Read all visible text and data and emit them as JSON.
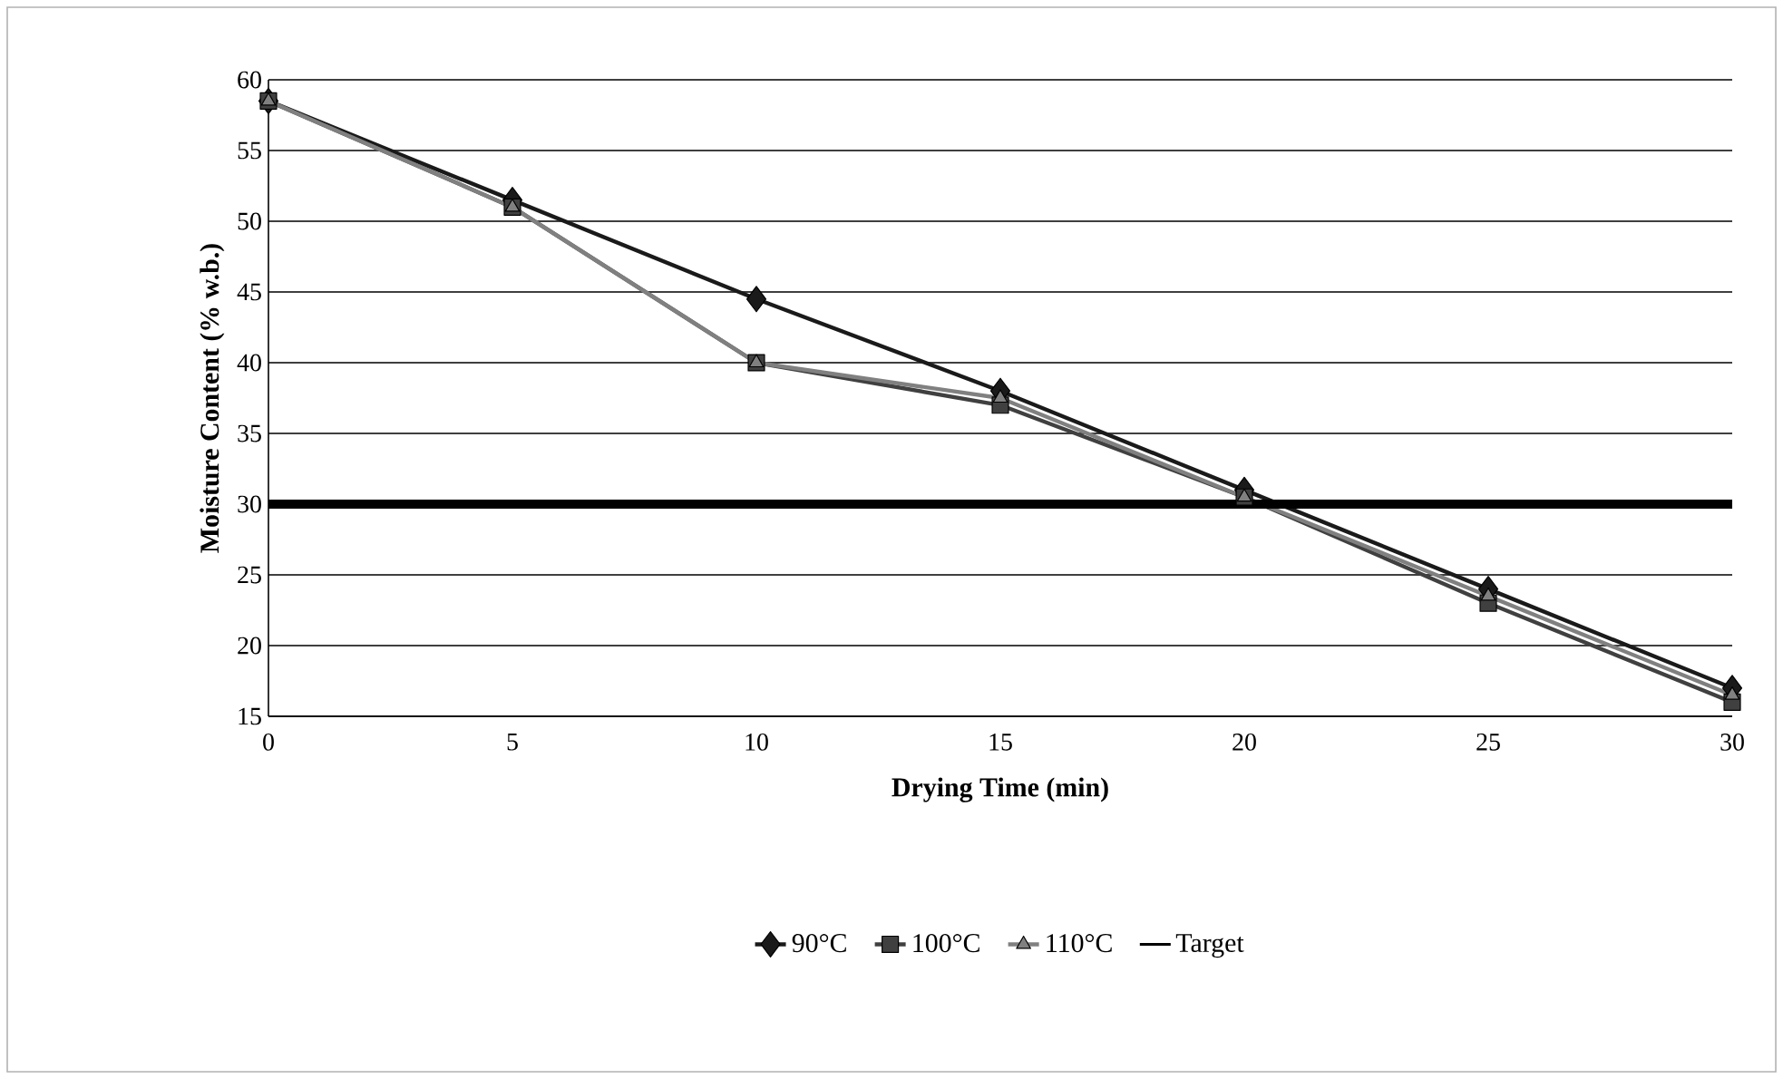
{
  "chart_data": {
    "type": "line",
    "xlabel": "Drying Time (min)",
    "ylabel": "Moisture Content (% w.b.)",
    "categories": [
      "0",
      "5",
      "10",
      "15",
      "20",
      "25",
      "30"
    ],
    "ylim": [
      15,
      60
    ],
    "yticks": [
      15,
      20,
      25,
      30,
      35,
      40,
      45,
      50,
      55,
      60
    ],
    "grid": "y",
    "legend": "bottom",
    "series": [
      {
        "name": "90°C",
        "color": "#1a1a1a",
        "marker": "diamond",
        "values": [
          58.5,
          51.5,
          44.5,
          38,
          31,
          24,
          17
        ]
      },
      {
        "name": "100°C",
        "color": "#404040",
        "marker": "square",
        "values": [
          58.5,
          51,
          40,
          37,
          30.5,
          23,
          16
        ]
      },
      {
        "name": "110°C",
        "color": "#808080",
        "marker": "triangle",
        "values": [
          58.5,
          51,
          40,
          37.5,
          30.5,
          23.5,
          16.5
        ]
      }
    ],
    "ref_lines": [
      {
        "axis": "y",
        "value": 30,
        "label": "Target",
        "color": "#000000"
      }
    ]
  }
}
